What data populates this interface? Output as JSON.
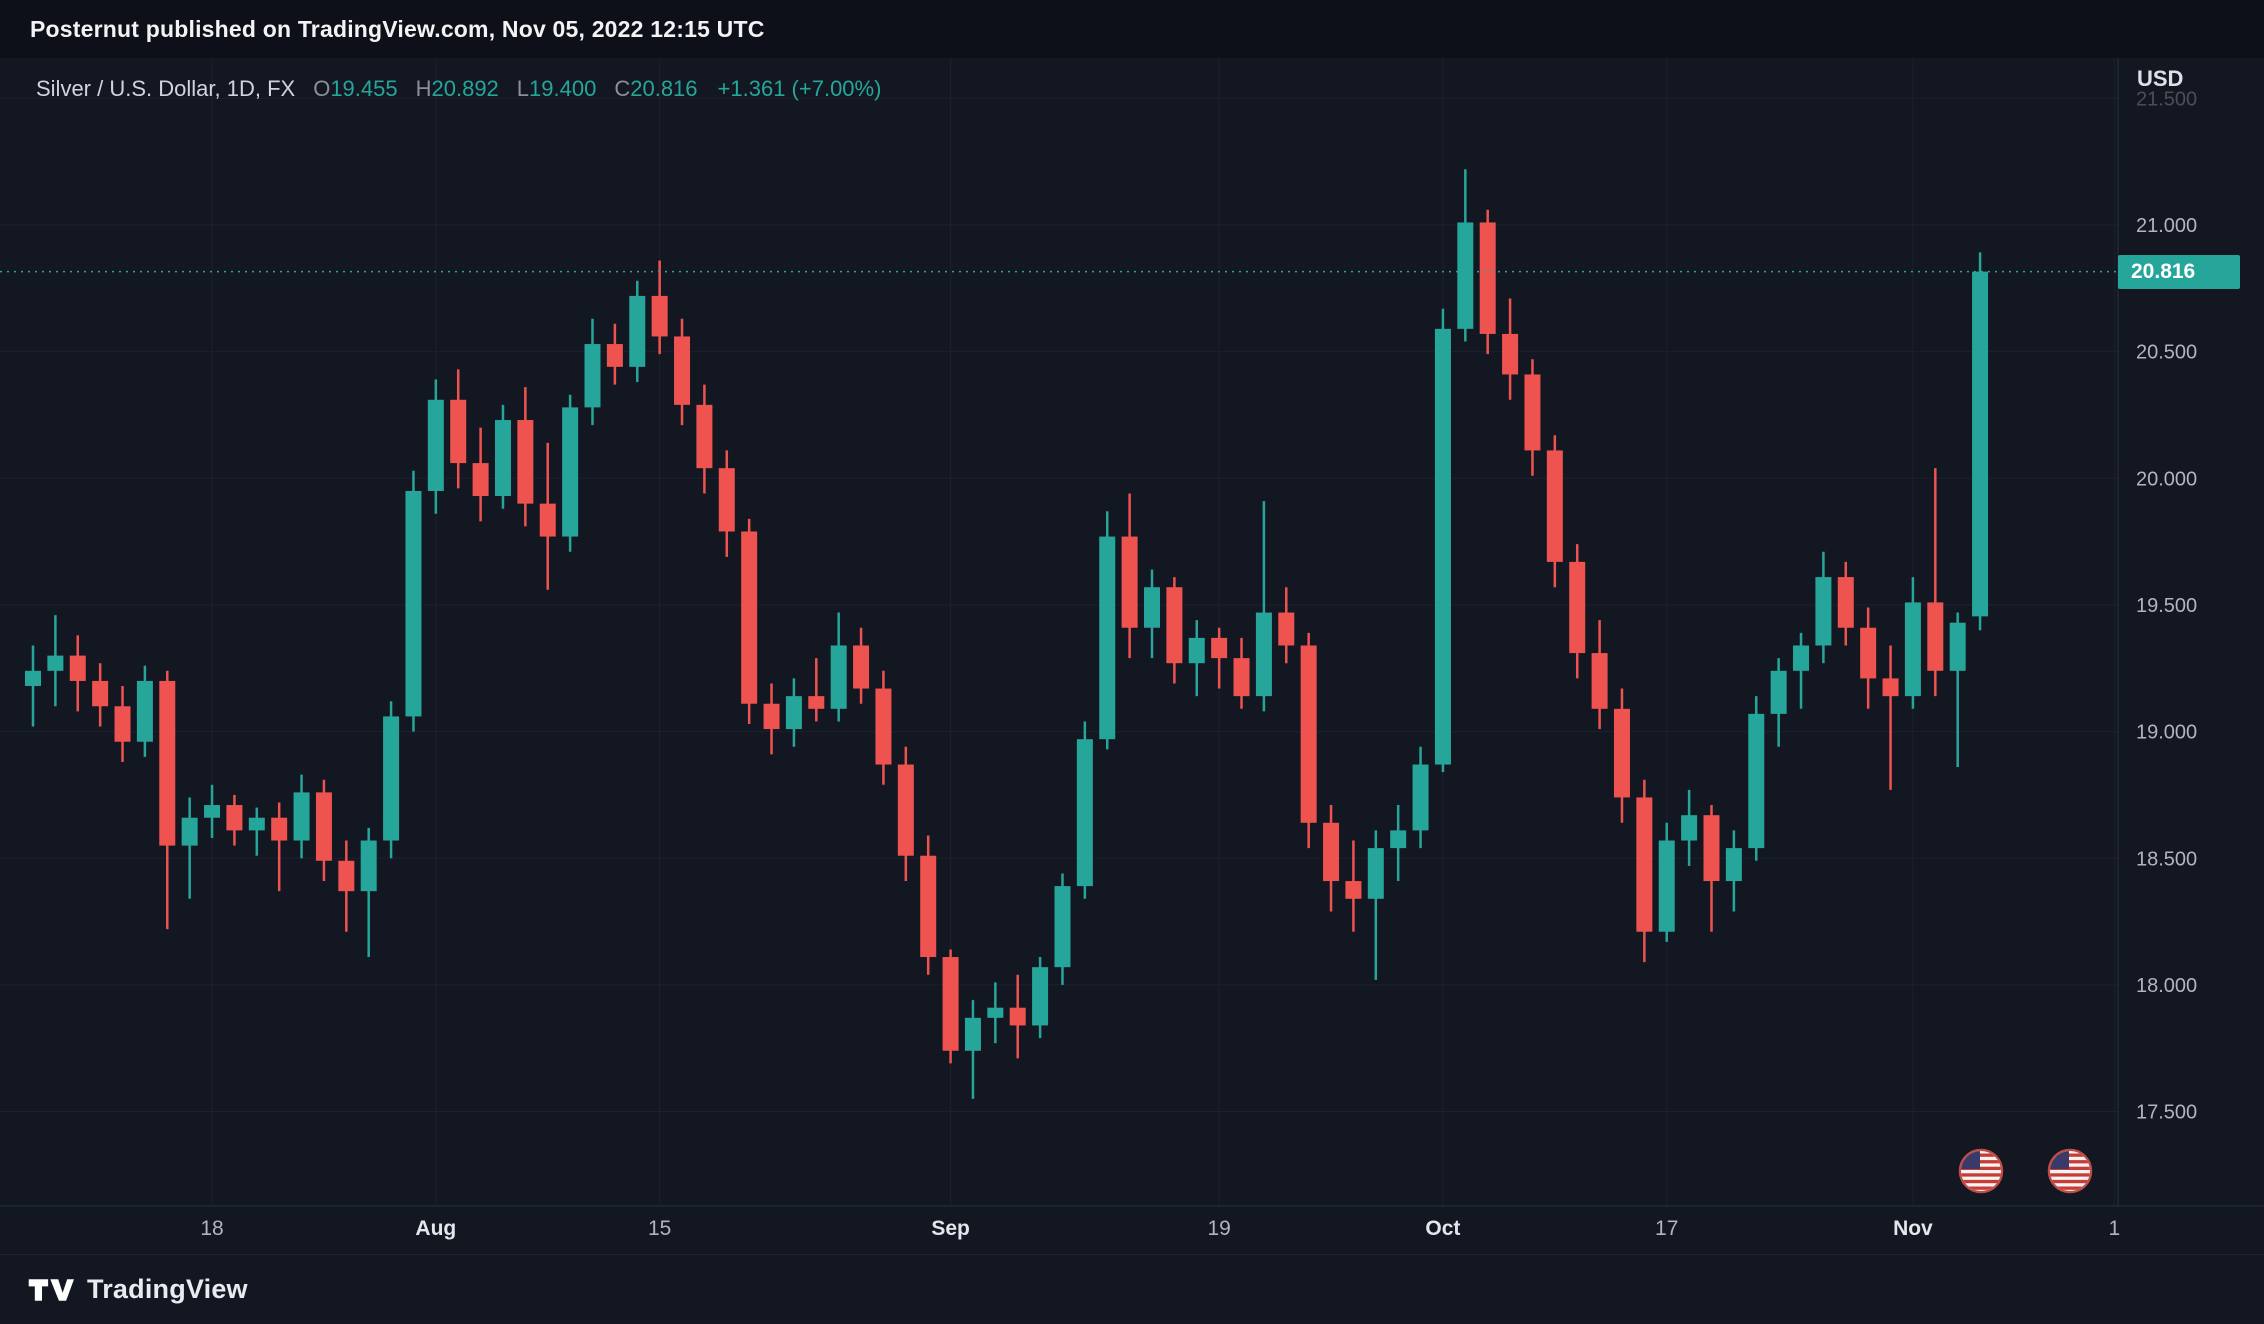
{
  "header": {
    "attribution": "Posternut published on TradingView.com, Nov 05, 2022 12:15 UTC"
  },
  "legend": {
    "symbol": "Silver / U.S. Dollar, 1D, FX",
    "o_label": "O",
    "o": "19.455",
    "h_label": "H",
    "h": "20.892",
    "l_label": "L",
    "l": "19.400",
    "c_label": "C",
    "c": "20.816",
    "change": "+1.361 (+7.00%)"
  },
  "price_axis": {
    "currency": "USD",
    "ticks": [
      "21.500",
      "21.000",
      "20.500",
      "20.000",
      "19.500",
      "19.000",
      "18.500",
      "18.000",
      "17.500"
    ],
    "faded_tick": "21.500",
    "last_price": "20.816"
  },
  "time_axis": {
    "labels": [
      {
        "text": "18",
        "index": 8,
        "major": false
      },
      {
        "text": "Aug",
        "index": 18,
        "major": true
      },
      {
        "text": "15",
        "index": 28,
        "major": false
      },
      {
        "text": "Sep",
        "index": 41,
        "major": true
      },
      {
        "text": "19",
        "index": 53,
        "major": false
      },
      {
        "text": "Oct",
        "index": 63,
        "major": true
      },
      {
        "text": "17",
        "index": 73,
        "major": false
      },
      {
        "text": "Nov",
        "index": 84,
        "major": true
      },
      {
        "text": "1",
        "index": 93,
        "major": false
      }
    ]
  },
  "footer": {
    "brand": "TradingView"
  },
  "colors": {
    "background": "#131722",
    "panel": "#0d1018",
    "up": "#26a69a",
    "down": "#ef5350",
    "grid": "#1c2130",
    "separator": "#2a2f3e",
    "axis_text": "#b2b5be",
    "axis_text_major": "#e4e6eb",
    "accent_text": "#d1d4dc",
    "dim_text": "#8b8f99",
    "last_price_bg": "#26a69a"
  },
  "chart_data": {
    "type": "candlestick",
    "title": "Silver / U.S. Dollar, 1D, FX",
    "currency": "USD",
    "last_bar_ohlc": {
      "open": 19.455,
      "high": 20.892,
      "low": 19.4,
      "close": 20.816,
      "change": "+1.361 (+7.00%)"
    },
    "last_price": 20.816,
    "ylim": [
      17.3,
      21.5
    ],
    "y_tick_step": 0.5,
    "grid": true,
    "candles": [
      {
        "t": "Jul 6",
        "o": 19.18,
        "h": 19.34,
        "l": 19.02,
        "c": 19.24
      },
      {
        "t": "Jul 7",
        "o": 19.24,
        "h": 19.46,
        "l": 19.1,
        "c": 19.3
      },
      {
        "t": "Jul 8",
        "o": 19.3,
        "h": 19.38,
        "l": 19.08,
        "c": 19.2
      },
      {
        "t": "Jul 11",
        "o": 19.2,
        "h": 19.27,
        "l": 19.02,
        "c": 19.1
      },
      {
        "t": "Jul 12",
        "o": 19.1,
        "h": 19.18,
        "l": 18.88,
        "c": 18.96
      },
      {
        "t": "Jul 13",
        "o": 18.96,
        "h": 19.26,
        "l": 18.9,
        "c": 19.2
      },
      {
        "t": "Jul 14",
        "o": 19.2,
        "h": 19.24,
        "l": 18.22,
        "c": 18.55
      },
      {
        "t": "Jul 15",
        "o": 18.55,
        "h": 18.74,
        "l": 18.34,
        "c": 18.66
      },
      {
        "t": "Jul 18",
        "o": 18.66,
        "h": 18.79,
        "l": 18.58,
        "c": 18.71
      },
      {
        "t": "Jul 19",
        "o": 18.71,
        "h": 18.75,
        "l": 18.55,
        "c": 18.61
      },
      {
        "t": "Jul 20",
        "o": 18.61,
        "h": 18.7,
        "l": 18.51,
        "c": 18.66
      },
      {
        "t": "Jul 21",
        "o": 18.66,
        "h": 18.72,
        "l": 18.37,
        "c": 18.57
      },
      {
        "t": "Jul 22",
        "o": 18.57,
        "h": 18.83,
        "l": 18.5,
        "c": 18.76
      },
      {
        "t": "Jul 25",
        "o": 18.76,
        "h": 18.81,
        "l": 18.41,
        "c": 18.49
      },
      {
        "t": "Jul 26",
        "o": 18.49,
        "h": 18.57,
        "l": 18.21,
        "c": 18.37
      },
      {
        "t": "Jul 27",
        "o": 18.37,
        "h": 18.62,
        "l": 18.11,
        "c": 18.57
      },
      {
        "t": "Jul 28",
        "o": 18.57,
        "h": 19.12,
        "l": 18.5,
        "c": 19.06
      },
      {
        "t": "Jul 29",
        "o": 19.06,
        "h": 20.03,
        "l": 19.0,
        "c": 19.95
      },
      {
        "t": "Aug 1",
        "o": 19.95,
        "h": 20.39,
        "l": 19.86,
        "c": 20.31
      },
      {
        "t": "Aug 2",
        "o": 20.31,
        "h": 20.43,
        "l": 19.96,
        "c": 20.06
      },
      {
        "t": "Aug 3",
        "o": 20.06,
        "h": 20.2,
        "l": 19.83,
        "c": 19.93
      },
      {
        "t": "Aug 4",
        "o": 19.93,
        "h": 20.29,
        "l": 19.88,
        "c": 20.23
      },
      {
        "t": "Aug 5",
        "o": 20.23,
        "h": 20.36,
        "l": 19.81,
        "c": 19.9
      },
      {
        "t": "Aug 8",
        "o": 19.9,
        "h": 20.14,
        "l": 19.56,
        "c": 19.77
      },
      {
        "t": "Aug 9",
        "o": 19.77,
        "h": 20.33,
        "l": 19.71,
        "c": 20.28
      },
      {
        "t": "Aug 10",
        "o": 20.28,
        "h": 20.63,
        "l": 20.21,
        "c": 20.53
      },
      {
        "t": "Aug 11",
        "o": 20.53,
        "h": 20.61,
        "l": 20.37,
        "c": 20.44
      },
      {
        "t": "Aug 12",
        "o": 20.44,
        "h": 20.78,
        "l": 20.38,
        "c": 20.72
      },
      {
        "t": "Aug 15",
        "o": 20.72,
        "h": 20.86,
        "l": 20.49,
        "c": 20.56
      },
      {
        "t": "Aug 16",
        "o": 20.56,
        "h": 20.63,
        "l": 20.21,
        "c": 20.29
      },
      {
        "t": "Aug 17",
        "o": 20.29,
        "h": 20.37,
        "l": 19.94,
        "c": 20.04
      },
      {
        "t": "Aug 18",
        "o": 20.04,
        "h": 20.11,
        "l": 19.69,
        "c": 19.79
      },
      {
        "t": "Aug 19",
        "o": 19.79,
        "h": 19.84,
        "l": 19.03,
        "c": 19.11
      },
      {
        "t": "Aug 22",
        "o": 19.11,
        "h": 19.19,
        "l": 18.91,
        "c": 19.01
      },
      {
        "t": "Aug 23",
        "o": 19.01,
        "h": 19.21,
        "l": 18.94,
        "c": 19.14
      },
      {
        "t": "Aug 24",
        "o": 19.14,
        "h": 19.29,
        "l": 19.04,
        "c": 19.09
      },
      {
        "t": "Aug 25",
        "o": 19.09,
        "h": 19.47,
        "l": 19.04,
        "c": 19.34
      },
      {
        "t": "Aug 26",
        "o": 19.34,
        "h": 19.41,
        "l": 19.11,
        "c": 19.17
      },
      {
        "t": "Aug 29",
        "o": 19.17,
        "h": 19.24,
        "l": 18.79,
        "c": 18.87
      },
      {
        "t": "Aug 30",
        "o": 18.87,
        "h": 18.94,
        "l": 18.41,
        "c": 18.51
      },
      {
        "t": "Aug 31",
        "o": 18.51,
        "h": 18.59,
        "l": 18.04,
        "c": 18.11
      },
      {
        "t": "Sep 1",
        "o": 18.11,
        "h": 18.14,
        "l": 17.69,
        "c": 17.74
      },
      {
        "t": "Sep 2",
        "o": 17.74,
        "h": 17.94,
        "l": 17.55,
        "c": 17.87
      },
      {
        "t": "Sep 5",
        "o": 17.87,
        "h": 18.01,
        "l": 17.77,
        "c": 17.91
      },
      {
        "t": "Sep 6",
        "o": 17.91,
        "h": 18.04,
        "l": 17.71,
        "c": 17.84
      },
      {
        "t": "Sep 7",
        "o": 17.84,
        "h": 18.11,
        "l": 17.79,
        "c": 18.07
      },
      {
        "t": "Sep 8",
        "o": 18.07,
        "h": 18.44,
        "l": 18.0,
        "c": 18.39
      },
      {
        "t": "Sep 9",
        "o": 18.39,
        "h": 19.04,
        "l": 18.34,
        "c": 18.97
      },
      {
        "t": "Sep 12",
        "o": 18.97,
        "h": 19.87,
        "l": 18.93,
        "c": 19.77
      },
      {
        "t": "Sep 13",
        "o": 19.77,
        "h": 19.94,
        "l": 19.29,
        "c": 19.41
      },
      {
        "t": "Sep 14",
        "o": 19.41,
        "h": 19.64,
        "l": 19.29,
        "c": 19.57
      },
      {
        "t": "Sep 15",
        "o": 19.57,
        "h": 19.61,
        "l": 19.19,
        "c": 19.27
      },
      {
        "t": "Sep 16",
        "o": 19.27,
        "h": 19.44,
        "l": 19.14,
        "c": 19.37
      },
      {
        "t": "Sep 19",
        "o": 19.37,
        "h": 19.41,
        "l": 19.17,
        "c": 19.29
      },
      {
        "t": "Sep 20",
        "o": 19.29,
        "h": 19.37,
        "l": 19.09,
        "c": 19.14
      },
      {
        "t": "Sep 21",
        "o": 19.14,
        "h": 19.91,
        "l": 19.08,
        "c": 19.47
      },
      {
        "t": "Sep 22",
        "o": 19.47,
        "h": 19.57,
        "l": 19.27,
        "c": 19.34
      },
      {
        "t": "Sep 23",
        "o": 19.34,
        "h": 19.39,
        "l": 18.54,
        "c": 18.64
      },
      {
        "t": "Sep 26",
        "o": 18.64,
        "h": 18.71,
        "l": 18.29,
        "c": 18.41
      },
      {
        "t": "Sep 27",
        "o": 18.41,
        "h": 18.57,
        "l": 18.21,
        "c": 18.34
      },
      {
        "t": "Sep 28",
        "o": 18.34,
        "h": 18.61,
        "l": 18.02,
        "c": 18.54
      },
      {
        "t": "Sep 29",
        "o": 18.54,
        "h": 18.71,
        "l": 18.41,
        "c": 18.61
      },
      {
        "t": "Sep 30",
        "o": 18.61,
        "h": 18.94,
        "l": 18.54,
        "c": 18.87
      },
      {
        "t": "Oct 3",
        "o": 18.87,
        "h": 20.67,
        "l": 18.84,
        "c": 20.59
      },
      {
        "t": "Oct 4",
        "o": 20.59,
        "h": 21.22,
        "l": 20.54,
        "c": 21.01
      },
      {
        "t": "Oct 5",
        "o": 21.01,
        "h": 21.06,
        "l": 20.49,
        "c": 20.57
      },
      {
        "t": "Oct 6",
        "o": 20.57,
        "h": 20.71,
        "l": 20.31,
        "c": 20.41
      },
      {
        "t": "Oct 7",
        "o": 20.41,
        "h": 20.47,
        "l": 20.01,
        "c": 20.11
      },
      {
        "t": "Oct 10",
        "o": 20.11,
        "h": 20.17,
        "l": 19.57,
        "c": 19.67
      },
      {
        "t": "Oct 11",
        "o": 19.67,
        "h": 19.74,
        "l": 19.21,
        "c": 19.31
      },
      {
        "t": "Oct 12",
        "o": 19.31,
        "h": 19.44,
        "l": 19.01,
        "c": 19.09
      },
      {
        "t": "Oct 13",
        "o": 19.09,
        "h": 19.17,
        "l": 18.64,
        "c": 18.74
      },
      {
        "t": "Oct 14",
        "o": 18.74,
        "h": 18.81,
        "l": 18.09,
        "c": 18.21
      },
      {
        "t": "Oct 17",
        "o": 18.21,
        "h": 18.64,
        "l": 18.17,
        "c": 18.57
      },
      {
        "t": "Oct 18",
        "o": 18.57,
        "h": 18.77,
        "l": 18.47,
        "c": 18.67
      },
      {
        "t": "Oct 19",
        "o": 18.67,
        "h": 18.71,
        "l": 18.21,
        "c": 18.41
      },
      {
        "t": "Oct 20",
        "o": 18.41,
        "h": 18.61,
        "l": 18.29,
        "c": 18.54
      },
      {
        "t": "Oct 21",
        "o": 18.54,
        "h": 19.14,
        "l": 18.49,
        "c": 19.07
      },
      {
        "t": "Oct 24",
        "o": 19.07,
        "h": 19.29,
        "l": 18.94,
        "c": 19.24
      },
      {
        "t": "Oct 25",
        "o": 19.24,
        "h": 19.39,
        "l": 19.09,
        "c": 19.34
      },
      {
        "t": "Oct 26",
        "o": 19.34,
        "h": 19.71,
        "l": 19.27,
        "c": 19.61
      },
      {
        "t": "Oct 27",
        "o": 19.61,
        "h": 19.67,
        "l": 19.34,
        "c": 19.41
      },
      {
        "t": "Oct 28",
        "o": 19.41,
        "h": 19.49,
        "l": 19.09,
        "c": 19.21
      },
      {
        "t": "Oct 31",
        "o": 19.21,
        "h": 19.34,
        "l": 18.77,
        "c": 19.14
      },
      {
        "t": "Nov 1",
        "o": 19.14,
        "h": 19.61,
        "l": 19.09,
        "c": 19.51
      },
      {
        "t": "Nov 2",
        "o": 19.51,
        "h": 20.04,
        "l": 19.14,
        "c": 19.24
      },
      {
        "t": "Nov 3",
        "o": 19.24,
        "h": 19.47,
        "l": 18.86,
        "c": 19.43
      },
      {
        "t": "Nov 4",
        "o": 19.455,
        "h": 20.892,
        "l": 19.4,
        "c": 20.816
      }
    ]
  }
}
